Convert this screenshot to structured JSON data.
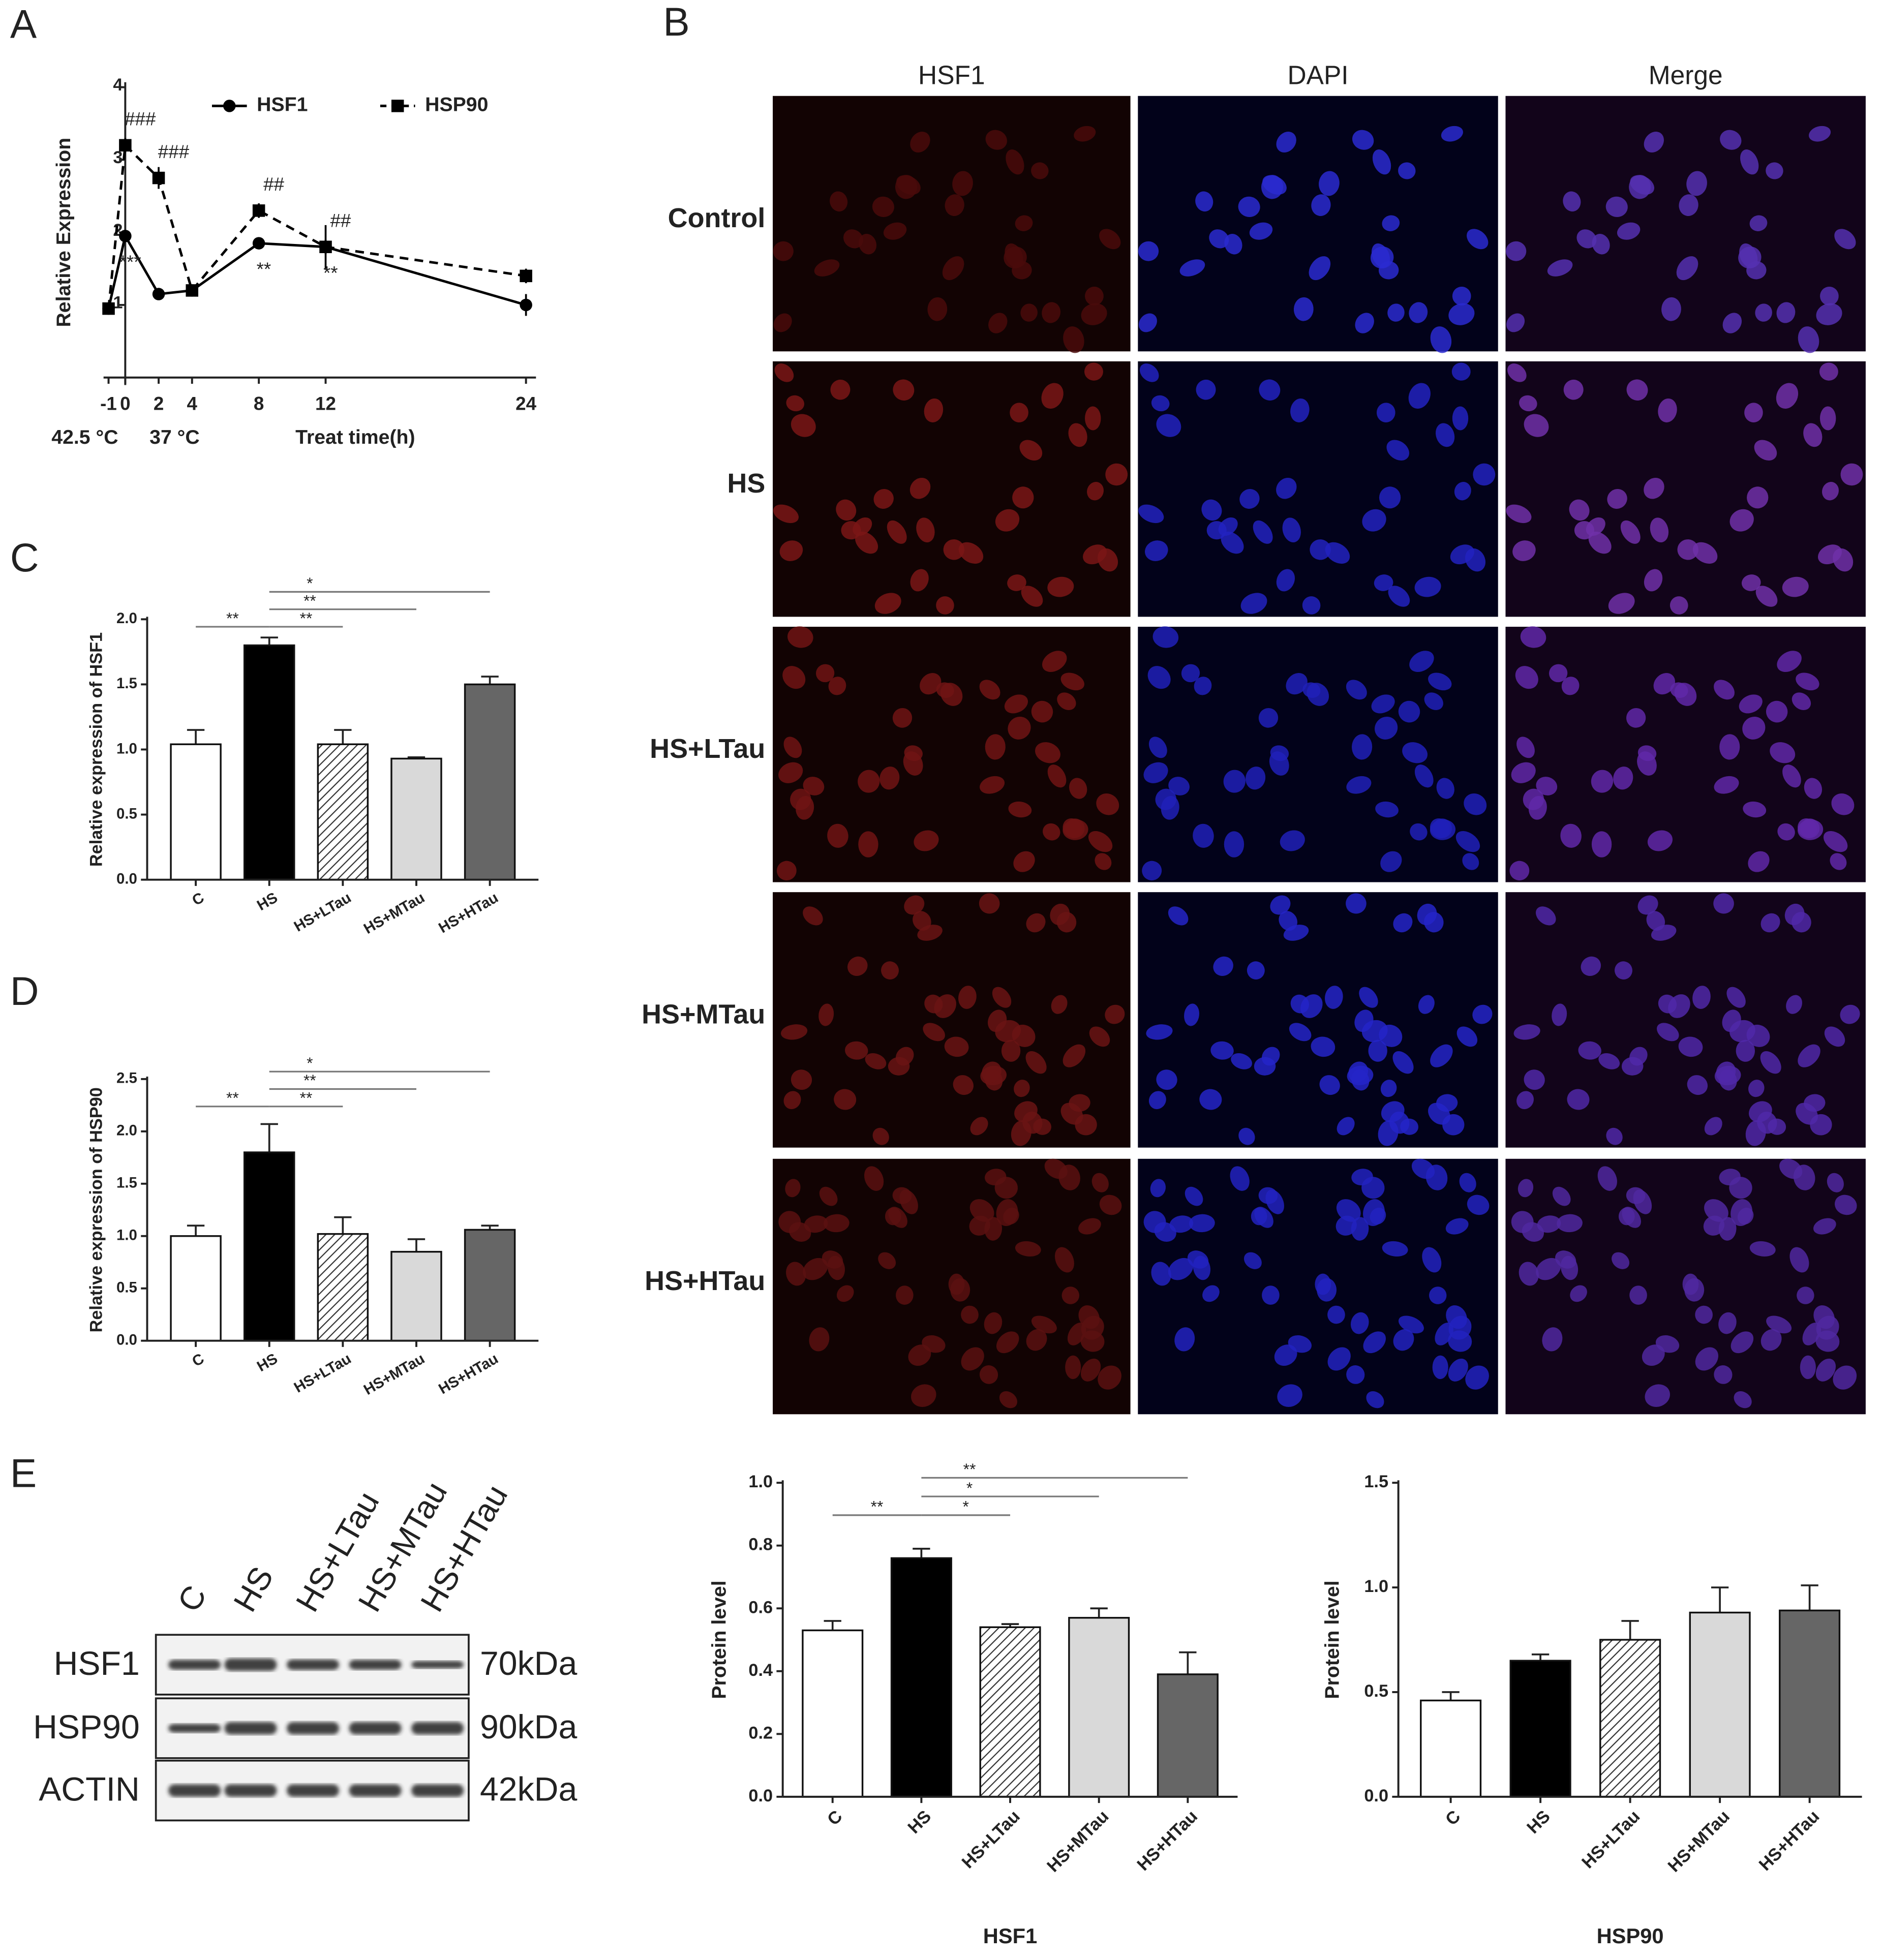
{
  "panel_labels": [
    "A",
    "B",
    "C",
    "D",
    "E"
  ],
  "chart_data": [
    {
      "type": "line",
      "ylabel": "Relative Expression",
      "xlabel": "Treat time(h)",
      "x_annotations": [
        "42.5 °C",
        "37 °C"
      ],
      "x": [
        -1,
        0,
        2,
        4,
        8,
        12,
        24
      ],
      "xlim": [
        -1.3,
        24.3
      ],
      "xticks": [
        -1,
        0,
        2,
        4,
        8,
        12,
        24
      ],
      "ylim": [
        0,
        4
      ],
      "yticks": [
        1,
        2,
        3,
        4
      ],
      "legend": "top",
      "series": [
        {
          "name": "HSF1",
          "color": "#000000",
          "marker": "circle",
          "dash": "solid",
          "values": [
            0.95,
            1.95,
            1.15,
            1.2,
            1.85,
            1.8,
            1.0
          ],
          "errors": [
            0.05,
            0.05,
            0.04,
            0.05,
            0.08,
            0.1,
            0.15
          ],
          "significance": [
            null,
            "***",
            null,
            null,
            "**",
            "**",
            null
          ]
        },
        {
          "name": "HSP90",
          "color": "#000000",
          "marker": "square",
          "dash": "dashed",
          "values": [
            0.95,
            3.2,
            2.75,
            1.2,
            2.3,
            1.8,
            1.4
          ],
          "errors": [
            0.05,
            0.1,
            0.15,
            0.05,
            0.1,
            0.3,
            0.1
          ],
          "significance": [
            null,
            "###",
            "###",
            null,
            "##",
            "##",
            null
          ]
        }
      ]
    },
    {
      "type": "bar",
      "ylabel": "Relative expression of HSF1",
      "categories": [
        "C",
        "HS",
        "HS+LTau",
        "HS+MTau",
        "HS+HTau"
      ],
      "values": [
        1.04,
        1.8,
        1.04,
        0.93,
        1.5
      ],
      "errors": [
        0.11,
        0.06,
        0.11,
        0.01,
        0.06
      ],
      "colors": [
        "#ffffff",
        "#000000",
        "#ffffff",
        "#d9d9d9",
        "#666666"
      ],
      "hatched": [
        false,
        false,
        true,
        false,
        false
      ],
      "ylim": [
        0,
        2
      ],
      "yticks": [
        {
          "value": 0,
          "label": "0.0"
        },
        {
          "value": 0.5,
          "label": "0.5"
        },
        {
          "value": 1,
          "label": "1.0"
        },
        {
          "value": 1.5,
          "label": "1.5"
        },
        {
          "value": 2,
          "label": "2.0"
        }
      ],
      "brackets": [
        {
          "from": 0,
          "to": 1,
          "label": "**"
        },
        {
          "from": 1,
          "to": 2,
          "label": "**"
        },
        {
          "from": 1,
          "to": 3,
          "label": "**"
        },
        {
          "from": 1,
          "to": 4,
          "label": "*"
        }
      ]
    },
    {
      "type": "bar",
      "ylabel": "Relative expression of HSP90",
      "categories": [
        "C",
        "HS",
        "HS+LTau",
        "HS+MTau",
        "HS+HTau"
      ],
      "values": [
        1.0,
        1.8,
        1.02,
        0.85,
        1.06
      ],
      "errors": [
        0.1,
        0.27,
        0.16,
        0.12,
        0.04
      ],
      "colors": [
        "#ffffff",
        "#000000",
        "#ffffff",
        "#d9d9d9",
        "#666666"
      ],
      "hatched": [
        false,
        false,
        true,
        false,
        false
      ],
      "ylim": [
        0,
        2.5
      ],
      "yticks": [
        {
          "value": 0,
          "label": "0.0"
        },
        {
          "value": 0.5,
          "label": "0.5"
        },
        {
          "value": 1,
          "label": "1.0"
        },
        {
          "value": 1.5,
          "label": "1.5"
        },
        {
          "value": 2,
          "label": "2.0"
        },
        {
          "value": 2.5,
          "label": "2.5"
        }
      ],
      "brackets": [
        {
          "from": 0,
          "to": 1,
          "label": "**"
        },
        {
          "from": 1,
          "to": 2,
          "label": "**"
        },
        {
          "from": 1,
          "to": 3,
          "label": "**"
        },
        {
          "from": 1,
          "to": 4,
          "label": "*"
        }
      ]
    },
    {
      "type": "bar",
      "ylabel": "Protein level",
      "xlabel": "HSF1",
      "categories": [
        "C",
        "HS",
        "HS+LTau",
        "HS+MTau",
        "HS+HTau"
      ],
      "values": [
        0.53,
        0.76,
        0.54,
        0.57,
        0.39
      ],
      "errors": [
        0.03,
        0.03,
        0.01,
        0.03,
        0.07
      ],
      "colors": [
        "#ffffff",
        "#000000",
        "#ffffff",
        "#d9d9d9",
        "#666666"
      ],
      "hatched": [
        false,
        false,
        true,
        false,
        false
      ],
      "ylim": [
        0,
        1
      ],
      "yticks": [
        {
          "value": 0,
          "label": "0.0"
        },
        {
          "value": 0.2,
          "label": "0.2"
        },
        {
          "value": 0.4,
          "label": "0.4"
        },
        {
          "value": 0.6,
          "label": "0.6"
        },
        {
          "value": 0.8,
          "label": "0.8"
        },
        {
          "value": 1,
          "label": "1.0"
        }
      ],
      "brackets": [
        {
          "from": 0,
          "to": 1,
          "label": "**"
        },
        {
          "from": 1,
          "to": 2,
          "label": "*"
        },
        {
          "from": 1,
          "to": 3,
          "label": "*"
        },
        {
          "from": 1,
          "to": 4,
          "label": "**"
        }
      ]
    },
    {
      "type": "bar",
      "ylabel": "Protein level",
      "xlabel": "HSP90",
      "categories": [
        "C",
        "HS",
        "HS+LTau",
        "HS+MTau",
        "HS+HTau"
      ],
      "values": [
        0.46,
        0.65,
        0.75,
        0.88,
        0.89
      ],
      "errors": [
        0.04,
        0.03,
        0.09,
        0.12,
        0.12
      ],
      "colors": [
        "#ffffff",
        "#000000",
        "#ffffff",
        "#d9d9d9",
        "#666666"
      ],
      "hatched": [
        false,
        false,
        true,
        false,
        false
      ],
      "ylim": [
        0,
        1.5
      ],
      "yticks": [
        {
          "value": 0,
          "label": "0.0"
        },
        {
          "value": 0.5,
          "label": "0.5"
        },
        {
          "value": 1,
          "label": "1.0"
        },
        {
          "value": 1.5,
          "label": "1.5"
        }
      ]
    }
  ],
  "microscopy": {
    "columns": [
      "HSF1",
      "DAPI",
      "Merge"
    ],
    "rows": [
      "Control",
      "HS",
      "HS+LTau",
      "HS+MTau",
      "HS+HTau"
    ]
  },
  "western_blot": {
    "lanes": [
      "C",
      "HS",
      "HS+LTau",
      "HS+MTau",
      "HS+HTau"
    ],
    "rows": [
      {
        "protein": "HSF1",
        "size": "70kDa"
      },
      {
        "protein": "HSP90",
        "size": "90kDa"
      },
      {
        "protein": "ACTIN",
        "size": "42kDa"
      }
    ]
  }
}
